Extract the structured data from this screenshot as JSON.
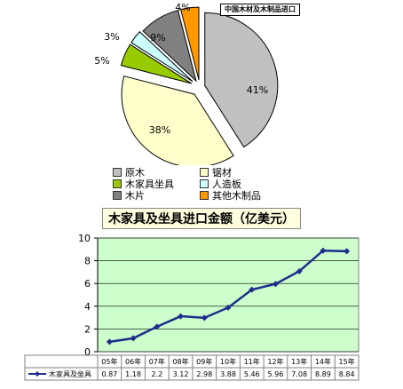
{
  "chart_data": [
    {
      "type": "pie",
      "title": "中国木材及木制品进口",
      "slices": [
        {
          "label": "原木",
          "value": 41,
          "label_text": "41%",
          "color": "#c0c0c0"
        },
        {
          "label": "锯材",
          "value": 38,
          "label_text": "38%",
          "color": "#ffffcc"
        },
        {
          "label": "木家具坐具",
          "value": 5,
          "label_text": "5%",
          "color": "#99cc00"
        },
        {
          "label": "人造板",
          "value": 3,
          "label_text": "3%",
          "color": "#ccffff"
        },
        {
          "label": "木片",
          "value": 9,
          "label_text": "9%",
          "color": "#808080"
        },
        {
          "label": "其他木制品",
          "value": 4,
          "label_text": "4%",
          "color": "#ff9900"
        }
      ],
      "legend_order": [
        "原木",
        "锯材",
        "木家具坐具",
        "人造板",
        "木片",
        "其他木制品"
      ]
    },
    {
      "type": "line",
      "title": "木家具及坐具进口金额（亿美元）",
      "categories": [
        "05年",
        "06年",
        "07年",
        "08年",
        "09年",
        "10年",
        "11年",
        "12年",
        "13年",
        "14年",
        "15年"
      ],
      "series": [
        {
          "name": "木家具及坐具",
          "values": [
            0.87,
            1.18,
            2.2,
            3.12,
            2.98,
            3.88,
            5.46,
            5.96,
            7.08,
            8.89,
            8.84
          ],
          "value_labels": [
            "0.87",
            "1.18",
            "2.2",
            "3.12",
            "2.98",
            "3.88",
            "5.46",
            "5.96",
            "7.08",
            "8.89",
            "8.84"
          ],
          "color": "#1f2d8c"
        }
      ],
      "ylim": [
        0,
        10
      ],
      "yticks": [
        "0",
        "2",
        "4",
        "6",
        "8",
        "10"
      ],
      "grid": true,
      "background": "#ccffcc"
    }
  ]
}
